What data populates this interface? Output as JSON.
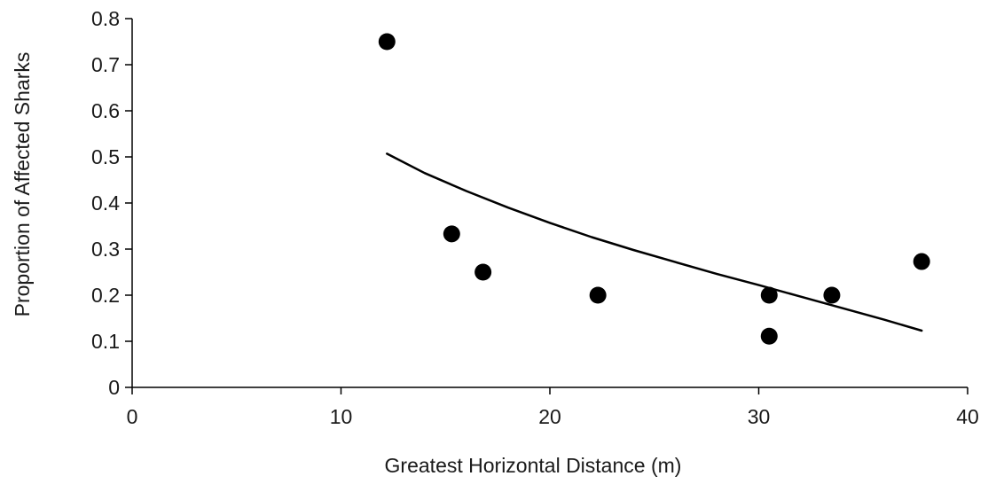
{
  "chart_data": {
    "type": "scatter",
    "xlabel": "Greatest Horizontal Distance (m)",
    "ylabel": "Proportion of Affected Sharks",
    "xlim": [
      0,
      40
    ],
    "ylim": [
      0,
      0.8
    ],
    "x_ticks": [
      0,
      10,
      20,
      30,
      40
    ],
    "y_ticks": [
      0,
      0.1,
      0.2,
      0.3,
      0.4,
      0.5,
      0.6,
      0.7,
      0.8
    ],
    "x_tick_labels": [
      "0",
      "10",
      "20",
      "30",
      "40"
    ],
    "y_tick_labels": [
      "0",
      "0.1",
      "0.2",
      "0.3",
      "0.4",
      "0.5",
      "0.6",
      "0.7",
      "0.8"
    ],
    "grid": false,
    "legend": "none",
    "colors": {
      "points": "#000000",
      "fit": "#000000",
      "axis": "#000000"
    },
    "series": [
      {
        "type": "scatter",
        "points": [
          {
            "x": 12.2,
            "y": 0.75
          },
          {
            "x": 15.3,
            "y": 0.333
          },
          {
            "x": 16.8,
            "y": 0.25
          },
          {
            "x": 22.3,
            "y": 0.2
          },
          {
            "x": 30.5,
            "y": 0.2
          },
          {
            "x": 30.5,
            "y": 0.111
          },
          {
            "x": 33.5,
            "y": 0.2
          },
          {
            "x": 37.8,
            "y": 0.273
          }
        ]
      },
      {
        "type": "line",
        "points": [
          {
            "x": 12.2,
            "y": 0.507
          },
          {
            "x": 14.0,
            "y": 0.465
          },
          {
            "x": 16.0,
            "y": 0.426
          },
          {
            "x": 18.0,
            "y": 0.39
          },
          {
            "x": 20.0,
            "y": 0.357
          },
          {
            "x": 22.0,
            "y": 0.326
          },
          {
            "x": 24.0,
            "y": 0.298
          },
          {
            "x": 26.0,
            "y": 0.272
          },
          {
            "x": 28.0,
            "y": 0.246
          },
          {
            "x": 30.0,
            "y": 0.222
          },
          {
            "x": 32.0,
            "y": 0.197
          },
          {
            "x": 34.0,
            "y": 0.172
          },
          {
            "x": 36.0,
            "y": 0.147
          },
          {
            "x": 37.8,
            "y": 0.123
          }
        ]
      }
    ]
  }
}
